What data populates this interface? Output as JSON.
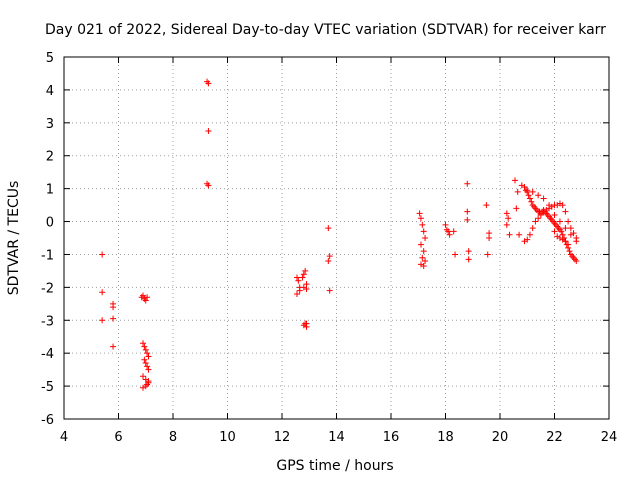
{
  "chart_data": {
    "type": "scatter",
    "title": "Day 021 of 2022, Sidereal Day-to-day VTEC variation (SDTVAR) for receiver karr",
    "xlabel": "GPS time / hours",
    "ylabel": "SDTVAR / TECUs",
    "xlim": [
      4,
      24
    ],
    "ylim": [
      -6,
      5
    ],
    "xticks": [
      4,
      6,
      8,
      10,
      12,
      14,
      16,
      18,
      20,
      22,
      24
    ],
    "yticks": [
      -6,
      -5,
      -4,
      -3,
      -2,
      -1,
      0,
      1,
      2,
      3,
      4,
      5
    ],
    "grid": true,
    "marker": "plus",
    "color": "#ff0000",
    "series": [
      {
        "name": "SDTVAR",
        "x": [
          5.4,
          5.4,
          5.4,
          5.8,
          5.8,
          5.8,
          5.8,
          6.85,
          6.9,
          6.95,
          7.0,
          7.05,
          6.9,
          6.95,
          7.0,
          7.05,
          7.1,
          6.95,
          7.0,
          7.05,
          7.1,
          6.9,
          7.0,
          7.1,
          6.9,
          7.0,
          7.05,
          7.1,
          9.25,
          9.3,
          9.3,
          9.25,
          9.3,
          12.55,
          12.6,
          12.65,
          12.55,
          12.65,
          12.75,
          12.8,
          12.85,
          12.9,
          12.8,
          12.9,
          12.85,
          12.9,
          12.8,
          12.9,
          13.7,
          13.75,
          13.7,
          13.75,
          17.05,
          17.1,
          17.15,
          17.2,
          17.25,
          17.1,
          17.2,
          17.15,
          17.25,
          17.1,
          17.2,
          18.0,
          18.05,
          18.1,
          18.15,
          18.3,
          18.35,
          18.8,
          18.8,
          18.85,
          18.85,
          18.8,
          19.5,
          19.6,
          19.6,
          19.55,
          20.25,
          20.3,
          20.25,
          20.35,
          20.55,
          20.65,
          20.6,
          20.7,
          20.8,
          20.9,
          20.95,
          21.0,
          21.05,
          21.1,
          21.15,
          21.2,
          21.25,
          21.3,
          21.35,
          21.4,
          21.45,
          21.5,
          21.55,
          21.6,
          21.65,
          21.7,
          21.75,
          21.8,
          21.85,
          21.9,
          21.95,
          22.0,
          22.05,
          22.1,
          22.15,
          22.2,
          22.25,
          22.3,
          22.35,
          22.4,
          22.45,
          22.5,
          22.55,
          22.6,
          22.65,
          22.7,
          22.75,
          22.8,
          20.9,
          21.0,
          21.1,
          21.2,
          21.3,
          21.4,
          21.5,
          21.6,
          21.7,
          21.8,
          21.9,
          22.0,
          22.1,
          22.2,
          22.3,
          22.4,
          22.5,
          22.6,
          22.7,
          22.8,
          21.0,
          21.2,
          21.4,
          21.6,
          21.8,
          22.0,
          22.2,
          22.4,
          22.6,
          22.8,
          22.0,
          22.1,
          22.2,
          22.3,
          22.4,
          22.5
        ],
        "y": [
          -1.0,
          -2.15,
          -3.0,
          -2.5,
          -2.6,
          -2.95,
          -3.8,
          -2.3,
          -2.25,
          -2.35,
          -2.4,
          -2.3,
          -3.7,
          -3.8,
          -3.9,
          -4.0,
          -4.1,
          -4.2,
          -4.3,
          -4.4,
          -4.5,
          -4.7,
          -4.8,
          -4.9,
          -5.05,
          -5.0,
          -4.95,
          -4.85,
          4.25,
          4.2,
          2.75,
          1.15,
          1.1,
          -1.7,
          -1.8,
          -2.0,
          -2.2,
          -2.1,
          -1.7,
          -1.6,
          -1.5,
          -1.9,
          -2.0,
          -2.05,
          -3.1,
          -3.2,
          -3.15,
          -3.1,
          -0.2,
          -1.05,
          -1.2,
          -2.1,
          0.25,
          0.1,
          -0.1,
          -0.3,
          -0.5,
          -0.7,
          -0.9,
          -1.1,
          -1.2,
          -1.3,
          -1.35,
          -0.1,
          -0.25,
          -0.3,
          -0.4,
          -0.3,
          -1.0,
          1.15,
          0.3,
          -0.9,
          -1.15,
          0.05,
          0.5,
          -0.35,
          -0.5,
          -1.0,
          0.25,
          0.1,
          -0.1,
          -0.4,
          1.25,
          0.9,
          0.4,
          -0.4,
          1.1,
          1.05,
          0.95,
          0.9,
          0.8,
          0.7,
          0.6,
          0.5,
          0.45,
          0.4,
          0.35,
          0.3,
          0.3,
          0.25,
          0.3,
          0.35,
          0.3,
          0.25,
          0.2,
          0.15,
          0.1,
          0.05,
          0.0,
          -0.05,
          -0.1,
          -0.15,
          -0.2,
          -0.25,
          -0.3,
          -0.4,
          -0.5,
          -0.6,
          -0.7,
          -0.8,
          -0.9,
          -1.0,
          -1.05,
          -1.1,
          -1.15,
          -1.2,
          -0.6,
          -0.55,
          -0.4,
          -0.2,
          0.0,
          0.1,
          0.2,
          0.3,
          0.35,
          0.4,
          0.45,
          0.5,
          0.5,
          0.55,
          0.5,
          0.3,
          0.0,
          -0.2,
          -0.35,
          -0.5,
          0.95,
          0.9,
          0.8,
          0.7,
          0.5,
          0.2,
          0.0,
          -0.2,
          -0.4,
          -0.6,
          -0.3,
          -0.45,
          -0.5,
          -0.55,
          -0.6,
          -0.7
        ]
      }
    ]
  }
}
